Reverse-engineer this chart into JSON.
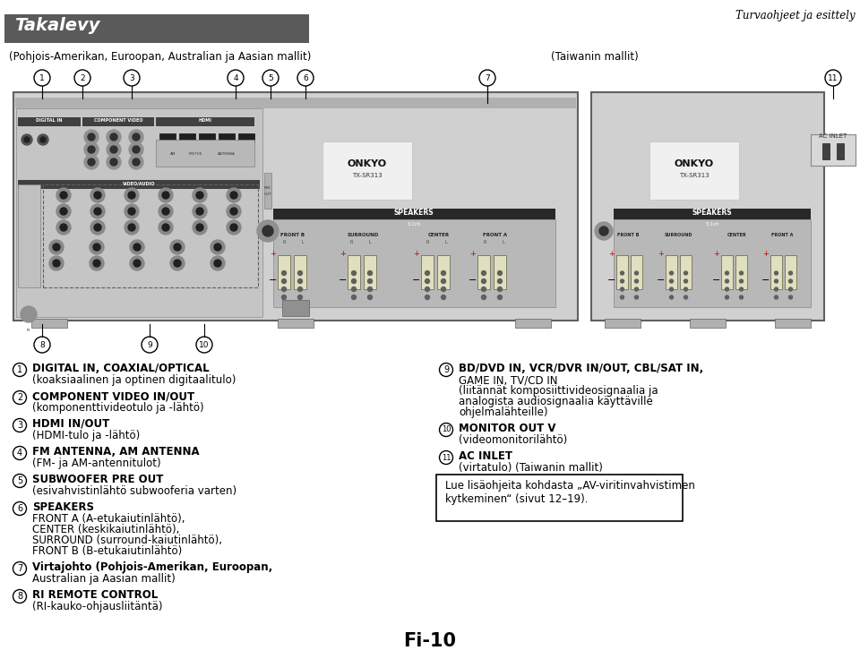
{
  "title_text": "Takalevy",
  "title_bg_color": "#5a5a5a",
  "title_text_color": "#ffffff",
  "top_right_text": "Turvaohjeet ja esittely",
  "subtitle_left": "(Pohjois-Amerikan, Euroopan, Australian ja Aasian mallit)",
  "subtitle_right": "(Taiwanin mallit)",
  "page_number": "Fi-10",
  "bg_color": "#ffffff",
  "left_items": [
    {
      "num": "1",
      "bold": "DIGITAL IN, COAXIAL/OPTICAL",
      "normal": "(koaksiaalinen ja optinen digitaalitulo)"
    },
    {
      "num": "2",
      "bold": "COMPONENT VIDEO IN/OUT",
      "normal": "(komponenttivideotulo ja -lähtö)"
    },
    {
      "num": "3",
      "bold": "HDMI IN/OUT",
      "normal": "(HDMI-tulo ja -lähtö)"
    },
    {
      "num": "4",
      "bold": "FM ANTENNA, AM ANTENNA",
      "normal": "(FM- ja AM-antennitulot)"
    },
    {
      "num": "5",
      "bold": "SUBWOOFER PRE OUT",
      "normal": "(esivahvistinlähtö subwooferia varten)"
    },
    {
      "num": "6",
      "bold": "SPEAKERS",
      "normal": "FRONT A (A-etukaiutinlähtö),\nCENTER (keskikaiutinlähtö),\nSURROUND (surround-kaiutinlähtö),\nFRONT B (B-etukaiutinlähtö)"
    },
    {
      "num": "7",
      "bold": "Virtajohto (Pohjois-Amerikan, Euroopan,",
      "normal": "Australian ja Aasian mallit)"
    },
    {
      "num": "8",
      "bold": "RI REMOTE CONTROL",
      "normal": "(RI-kauko-ohjausliitäntä)"
    }
  ],
  "right_items": [
    {
      "num": "9",
      "bold": "BD/DVD IN, VCR/DVR IN/OUT, CBL/SAT IN,",
      "normal": "GAME IN, TV/CD IN\n(liitännät komposiittivideosignaalia ja\nanalogista audiosignaalia käyttäville\nohjelmalähteille)"
    },
    {
      "num": "10",
      "bold": "MONITOR OUT V",
      "normal": "(videomonitorilähtö)"
    },
    {
      "num": "11",
      "bold": "AC INLET",
      "normal": "(virtatulo) (Taiwanin mallit)"
    }
  ],
  "note_text": "Lue lisäohjeita kohdasta „AV-viritinvahvistimen\nkytkeminen“ (sivut 12–19).",
  "device_bg": "#d8d8d8",
  "device_border": "#808080",
  "panel_left_bg": "#c8c8c8",
  "panel_dark": "#404040",
  "panel_mid": "#909090"
}
